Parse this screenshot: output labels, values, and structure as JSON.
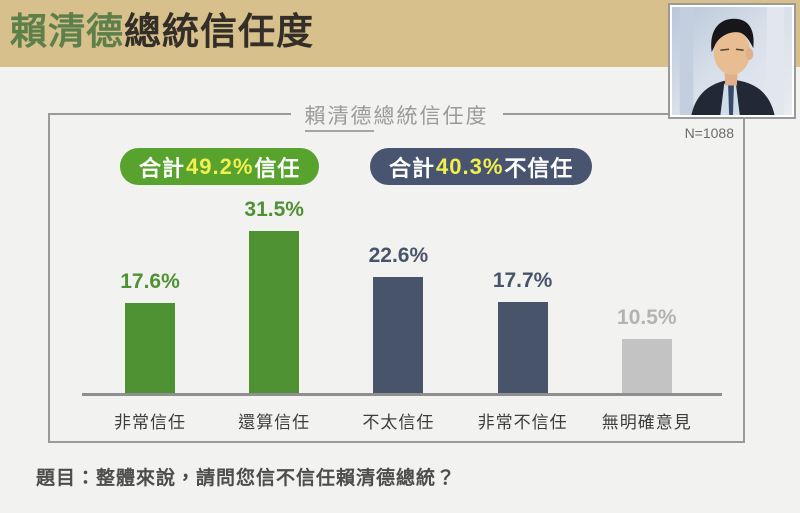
{
  "header": {
    "title_highlight": "賴清德",
    "title_rest": "總統信任度",
    "band_color": "#d7c08c",
    "highlight_color": "#5d7f4a",
    "text_color": "#332f28"
  },
  "photo": {
    "alt": "president-portrait"
  },
  "panel": {
    "title_underlined": "賴清德",
    "title_rest": "總統信任度",
    "sample_size": "N=1088"
  },
  "badges": [
    {
      "prefix": "合計",
      "value": "49.2%",
      "suffix": "信任",
      "bg": "#57a32e",
      "value_color": "#f2ef4f"
    },
    {
      "prefix": "合計",
      "value": "40.3%",
      "suffix": "不信任",
      "bg": "#485470",
      "value_color": "#f2ef4f"
    }
  ],
  "chart_data": {
    "type": "bar",
    "title": "賴清德總統信任度",
    "sample": "N=1088",
    "categories": [
      "非常信任",
      "還算信任",
      "不太信任",
      "非常不信任",
      "無明確意見"
    ],
    "values": [
      17.6,
      31.5,
      22.6,
      17.7,
      10.5
    ],
    "value_labels": [
      "17.6%",
      "31.5%",
      "22.6%",
      "17.7%",
      "10.5%"
    ],
    "bar_colors": [
      "#4e9234",
      "#4e9234",
      "#475469",
      "#475469",
      "#c3c3c3"
    ],
    "label_colors": [
      "#4e9234",
      "#4e9234",
      "#475469",
      "#475469",
      "#b3b3b3"
    ],
    "xlabel": "",
    "ylabel": "",
    "ylim": [
      0,
      35
    ],
    "grid": false,
    "legend": null,
    "summary_totals": [
      {
        "label": "合計49.2%信任",
        "value": 49.2,
        "group": "信任"
      },
      {
        "label": "合計40.3%不信任",
        "value": 40.3,
        "group": "不信任"
      }
    ]
  },
  "question": {
    "text": "題目：整體來說，請問您信不信任賴清德總統？"
  }
}
